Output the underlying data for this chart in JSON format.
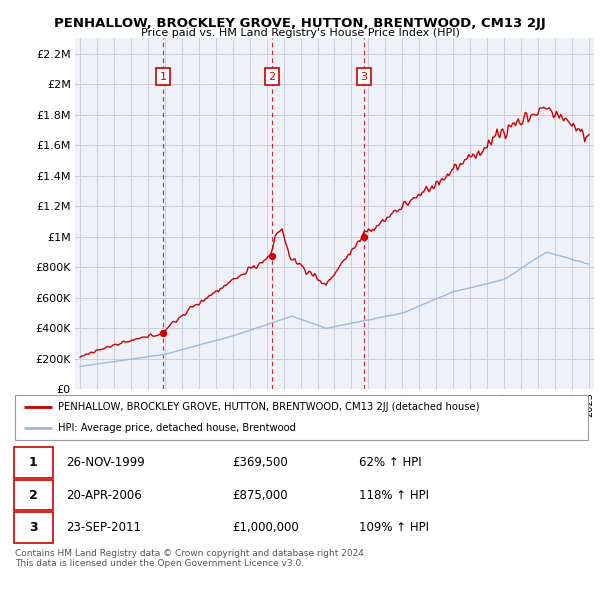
{
  "title": "PENHALLOW, BROCKLEY GROVE, HUTTON, BRENTWOOD, CM13 2JJ",
  "subtitle": "Price paid vs. HM Land Registry's House Price Index (HPI)",
  "legend_label_red": "PENHALLOW, BROCKLEY GROVE, HUTTON, BRENTWOOD, CM13 2JJ (detached house)",
  "legend_label_blue": "HPI: Average price, detached house, Brentwood",
  "transactions": [
    {
      "num": 1,
      "date": "26-NOV-1999",
      "price": "£369,500",
      "hpi": "62% ↑ HPI",
      "x": 1999.9
    },
    {
      "num": 2,
      "date": "20-APR-2006",
      "price": "£875,000",
      "hpi": "118% ↑ HPI",
      "x": 2006.3
    },
    {
      "num": 3,
      "date": "23-SEP-2011",
      "price": "£1,000,000",
      "hpi": "109% ↑ HPI",
      "x": 2011.72
    }
  ],
  "transaction_values": [
    369500,
    875000,
    1000000
  ],
  "footer": "Contains HM Land Registry data © Crown copyright and database right 2024.\nThis data is licensed under the Open Government Licence v3.0.",
  "ylim": [
    0,
    2300000
  ],
  "yticks": [
    0,
    200000,
    400000,
    600000,
    800000,
    1000000,
    1200000,
    1400000,
    1600000,
    1800000,
    2000000,
    2200000
  ],
  "xlim_start": 1994.7,
  "xlim_end": 2025.3,
  "red_color": "#cc0000",
  "blue_color": "#99bbdd",
  "grid_color": "#ccccdd",
  "bg_color": "#ffffff",
  "plot_bg": "#eef2f8"
}
